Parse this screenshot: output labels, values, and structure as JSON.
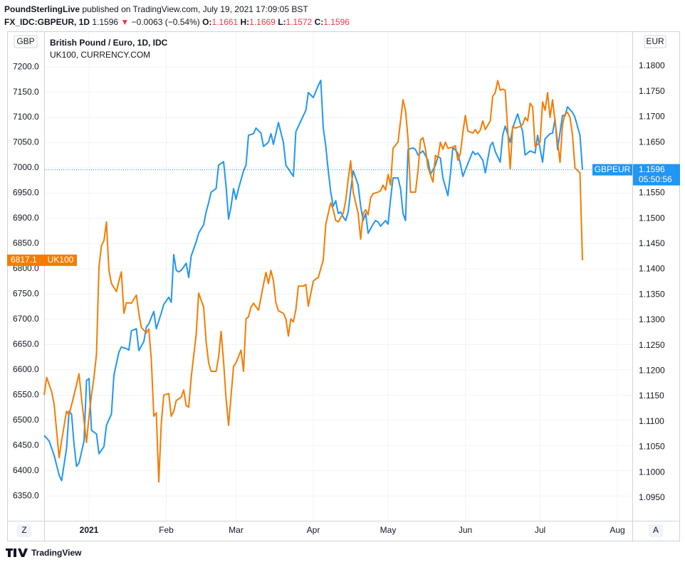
{
  "header": {
    "author": "PoundSterlingLive",
    "published": "published on TradingView.com, July 19, 2021 17:09:05 BST",
    "symbol": "FX_IDC:GBPEUR, 1D",
    "price": "1.1596",
    "change_arrow": "▼",
    "change": "−0.0063 (−0.54%)",
    "ohlc": [
      {
        "key": "O:",
        "value": "1.1661"
      },
      {
        "key": "H:",
        "value": "1.1669"
      },
      {
        "key": "L:",
        "value": "1.1572"
      },
      {
        "key": "C:",
        "value": "1.1596"
      }
    ]
  },
  "controls": [
    "Z",
    "A"
  ],
  "footer": {
    "brand": "TradingView"
  },
  "chart_data": {
    "type": "line",
    "y_unit": "GBP",
    "y2_unit": "EUR",
    "countdown": "05:50:56",
    "grid": true,
    "xlim": [
      -18,
      218
    ],
    "xticks": [
      {
        "value": 0,
        "label": "2021"
      },
      {
        "value": 31,
        "label": "Feb"
      },
      {
        "value": 59,
        "label": "Mar"
      },
      {
        "value": 90,
        "label": "Apr"
      },
      {
        "value": 120,
        "label": "May"
      },
      {
        "value": 151,
        "label": "Jun"
      },
      {
        "value": 181,
        "label": "Jul"
      },
      {
        "value": 212,
        "label": "Aug"
      }
    ],
    "ylim": [
      6301,
      7265
    ],
    "yticks": [
      {
        "value": 6350,
        "label": "6350.0"
      },
      {
        "value": 6400,
        "label": "6400.0"
      },
      {
        "value": 6450,
        "label": "6450.0"
      },
      {
        "value": 6500,
        "label": "6500.0"
      },
      {
        "value": 6550,
        "label": "6550.0"
      },
      {
        "value": 6600,
        "label": "6600.0"
      },
      {
        "value": 6650,
        "label": "6650.0"
      },
      {
        "value": 6700,
        "label": "6700.0"
      },
      {
        "value": 6750,
        "label": "6750.0"
      },
      {
        "value": 6800,
        "label": "6800.0"
      },
      {
        "value": 6850,
        "label": "6850.0"
      },
      {
        "value": 6900,
        "label": "6900.0"
      },
      {
        "value": 6950,
        "label": "6950.0"
      },
      {
        "value": 7000,
        "label": "7000.0"
      },
      {
        "value": 7050,
        "label": "7050.0"
      },
      {
        "value": 7100,
        "label": "7100.0"
      },
      {
        "value": 7150,
        "label": "7150.0"
      },
      {
        "value": 7200,
        "label": "7200.0"
      }
    ],
    "y2lim": [
      1.0905,
      1.1863
    ],
    "y2ticks": [
      {
        "value": 1.095,
        "label": "1.0950"
      },
      {
        "value": 1.1,
        "label": "1.1000"
      },
      {
        "value": 1.105,
        "label": "1.1050"
      },
      {
        "value": 1.11,
        "label": "1.1100"
      },
      {
        "value": 1.115,
        "label": "1.1150"
      },
      {
        "value": 1.12,
        "label": "1.1200"
      },
      {
        "value": 1.125,
        "label": "1.1250"
      },
      {
        "value": 1.13,
        "label": "1.1300"
      },
      {
        "value": 1.135,
        "label": "1.1350"
      },
      {
        "value": 1.14,
        "label": "1.1400"
      },
      {
        "value": 1.145,
        "label": "1.1450"
      },
      {
        "value": 1.15,
        "label": "1.1500"
      },
      {
        "value": 1.155,
        "label": "1.1550"
      },
      {
        "value": 1.16,
        "label": "1.1600"
      },
      {
        "value": 1.165,
        "label": "1.1650"
      },
      {
        "value": 1.17,
        "label": "1.1700"
      },
      {
        "value": 1.175,
        "label": "1.1750"
      },
      {
        "value": 1.18,
        "label": "1.1800"
      }
    ],
    "series": [
      {
        "name": "GBPEUR",
        "legend": "British Pound / Euro, 1D, IDC",
        "color": "#2196f3",
        "axis": "y2",
        "x": [
          -18,
          -16,
          -14,
          -12,
          -11,
          -9,
          -8,
          -7,
          -6,
          -5,
          -4,
          -2,
          -1,
          0,
          1,
          3,
          4,
          6,
          7,
          9,
          10,
          12,
          13,
          15,
          16,
          17,
          19,
          20,
          22,
          23,
          24,
          26,
          27,
          29,
          30,
          32,
          33,
          34,
          35,
          36,
          37,
          39,
          40,
          41,
          43,
          44,
          46,
          47,
          48,
          49,
          51,
          52,
          54,
          55,
          56,
          57,
          58,
          59,
          60,
          62,
          63,
          64,
          66,
          67,
          69,
          70,
          72,
          73,
          74,
          76,
          78,
          79,
          82,
          83,
          85,
          87,
          88,
          90,
          92,
          93,
          94,
          95,
          96,
          97,
          98,
          99,
          100,
          101,
          102,
          103,
          104,
          105,
          106,
          108,
          109,
          110,
          111,
          112,
          114,
          115,
          116,
          117,
          119,
          120,
          121,
          122,
          124,
          125,
          126,
          127,
          128,
          130,
          131,
          132,
          134,
          136,
          137,
          139,
          140,
          141,
          142,
          144,
          145,
          146,
          148,
          149,
          150,
          152,
          154,
          155,
          156,
          158,
          159,
          161,
          162,
          163,
          165,
          166,
          167,
          169,
          170,
          172,
          174,
          175,
          177,
          179,
          180,
          182,
          183,
          185,
          186,
          187,
          188,
          190,
          191,
          192,
          194,
          195,
          197,
          198
        ],
        "values": [
          1.1073,
          1.1062,
          1.1034,
          1.0995,
          1.0984,
          1.1048,
          1.1121,
          1.1115,
          1.1055,
          1.1012,
          1.1019,
          1.1062,
          1.1181,
          1.1185,
          1.1083,
          1.1076,
          1.1037,
          1.1051,
          1.1093,
          1.1115,
          1.1192,
          1.1237,
          1.1247,
          1.1244,
          1.1241,
          1.1279,
          1.1283,
          1.124,
          1.1258,
          1.1286,
          1.1293,
          1.1317,
          1.1283,
          1.1314,
          1.1331,
          1.1345,
          1.1335,
          1.1429,
          1.1398,
          1.1395,
          1.1398,
          1.1412,
          1.1384,
          1.1426,
          1.1454,
          1.1471,
          1.1488,
          1.1513,
          1.1531,
          1.1552,
          1.1559,
          1.1605,
          1.1612,
          1.1563,
          1.1499,
          1.1524,
          1.1559,
          1.1538,
          1.1559,
          1.1594,
          1.1605,
          1.1664,
          1.1667,
          1.1678,
          1.1668,
          1.1642,
          1.165,
          1.1667,
          1.1646,
          1.1689,
          1.165,
          1.1605,
          1.1583,
          1.1671,
          1.1692,
          1.1713,
          1.1748,
          1.1738,
          1.1762,
          1.1772,
          1.1678,
          1.1643,
          1.1594,
          1.1552,
          1.1524,
          1.1535,
          1.151,
          1.1513,
          1.1503,
          1.1496,
          1.1513,
          1.1555,
          1.1594,
          1.1566,
          1.1524,
          1.1496,
          1.151,
          1.1471,
          1.1489,
          1.1496,
          1.1493,
          1.1485,
          1.1496,
          1.1489,
          1.1538,
          1.158,
          1.158,
          1.1559,
          1.151,
          1.1496,
          1.1636,
          1.1639,
          1.1636,
          1.1625,
          1.1633,
          1.1615,
          1.1587,
          1.1605,
          1.1622,
          1.1619,
          1.158,
          1.1545,
          1.1587,
          1.164,
          1.1629,
          1.1608,
          1.1583,
          1.1608,
          1.1632,
          1.1626,
          1.1629,
          1.1615,
          1.159,
          1.1643,
          1.165,
          1.1632,
          1.1611,
          1.1664,
          1.1682,
          1.165,
          1.1678,
          1.1706,
          1.1671,
          1.1625,
          1.1633,
          1.1629,
          1.1664,
          1.1611,
          1.1657,
          1.1667,
          1.1668,
          1.1696,
          1.1636,
          1.1703,
          1.1702,
          1.172,
          1.1709,
          1.1699,
          1.1664,
          1.1596
        ]
      },
      {
        "name": "UK100",
        "legend": "UK100, CURRENCY.COM",
        "color": "#f57c00",
        "axis": "y",
        "x": [
          -18,
          -17,
          -15,
          -14,
          -12,
          -11,
          -9,
          -8,
          -6,
          -5,
          -4,
          -3,
          -1,
          0,
          1,
          2,
          3,
          4,
          5,
          6,
          7,
          8,
          9,
          11,
          12,
          13,
          14,
          15,
          17,
          18,
          19,
          20,
          21,
          23,
          24,
          25,
          26,
          27,
          28,
          29,
          30,
          32,
          33,
          34,
          35,
          37,
          38,
          39,
          40,
          41,
          43,
          44,
          45,
          46,
          47,
          48,
          49,
          51,
          52,
          53,
          54,
          55,
          56,
          58,
          59,
          61,
          62,
          63,
          64,
          65,
          66,
          68,
          69,
          70,
          71,
          72,
          73,
          74,
          75,
          76,
          78,
          79,
          80,
          81,
          82,
          83,
          84,
          86,
          87,
          88,
          90,
          91,
          92,
          94,
          95,
          96,
          97,
          98,
          99,
          100,
          102,
          103,
          104,
          105,
          106,
          108,
          109,
          110,
          111,
          112,
          113,
          114,
          116,
          117,
          118,
          119,
          120,
          121,
          122,
          124,
          125,
          126,
          127,
          128,
          129,
          131,
          132,
          133,
          134,
          135,
          136,
          138,
          139,
          140,
          141,
          142,
          143,
          144,
          146,
          147,
          148,
          149,
          150,
          151,
          152,
          154,
          155,
          156,
          157,
          158,
          159,
          161,
          162,
          163,
          164,
          165,
          166,
          167,
          169,
          170,
          171,
          173,
          174,
          175,
          176,
          177,
          178,
          179,
          181,
          182,
          183,
          184,
          185,
          186,
          187,
          189,
          190,
          191,
          192,
          193,
          194,
          195,
          197,
          198
        ],
        "values": [
          6550,
          6585,
          6557,
          6532,
          6426,
          6459,
          6518,
          6511,
          6550,
          6571,
          6592,
          6543,
          6456,
          6508,
          6550,
          6585,
          6631,
          6804,
          6846,
          6856,
          6893,
          6797,
          6771,
          6755,
          6776,
          6794,
          6712,
          6733,
          6732,
          6740,
          6748,
          6712,
          6684,
          6673,
          6681,
          6621,
          6508,
          6515,
          6378,
          6494,
          6550,
          6553,
          6508,
          6518,
          6539,
          6546,
          6560,
          6529,
          6526,
          6585,
          6670,
          6752,
          6738,
          6724,
          6656,
          6614,
          6597,
          6597,
          6625,
          6676,
          6616,
          6543,
          6490,
          6607,
          6614,
          6639,
          6597,
          6701,
          6705,
          6724,
          6732,
          6718,
          6743,
          6769,
          6793,
          6771,
          6797,
          6776,
          6733,
          6717,
          6712,
          6701,
          6667,
          6701,
          6695,
          6719,
          6766,
          6766,
          6769,
          6726,
          6776,
          6780,
          6783,
          6818,
          6888,
          6910,
          6931,
          6917,
          6896,
          6893,
          6910,
          6935,
          6977,
          7014,
          6952,
          6910,
          6859,
          6910,
          6917,
          6907,
          6941,
          6949,
          6952,
          6955,
          6966,
          6956,
          6987,
          6966,
          7039,
          7051,
          7093,
          7135,
          7114,
          7058,
          6952,
          6952,
          6994,
          7055,
          7060,
          7037,
          7001,
          6972,
          7025,
          7020,
          7051,
          7037,
          7051,
          7039,
          7041,
          7044,
          7015,
          7028,
          7070,
          7104,
          7073,
          7069,
          7076,
          7068,
          7075,
          7093,
          7076,
          7093,
          7142,
          7149,
          7173,
          7154,
          7156,
          7154,
          6998,
          7082,
          7079,
          7082,
          7086,
          7100,
          7093,
          7128,
          7121,
          7042,
          7051,
          7131,
          7114,
          7149,
          7100,
          7135,
          7093,
          7011,
          7086,
          7107,
          7110,
          7100,
          7065,
          7000,
          6990,
          6817.1
        ]
      }
    ]
  }
}
